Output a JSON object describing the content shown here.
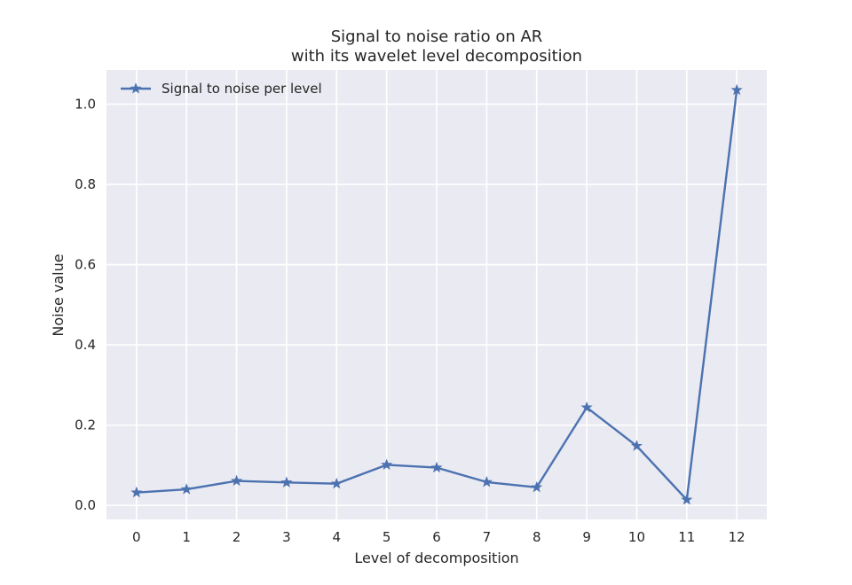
{
  "chart_data": {
    "type": "line",
    "title": [
      "Signal to noise ratio on AR",
      "with its wavelet level decomposition"
    ],
    "xlabel": "Level of decomposition",
    "ylabel": "Noise value",
    "x": [
      0,
      1,
      2,
      3,
      4,
      5,
      6,
      7,
      8,
      9,
      10,
      11,
      12
    ],
    "xlim": [
      -0.6,
      12.6
    ],
    "ylim": [
      -0.035,
      1.085
    ],
    "xticks": [
      "0",
      "1",
      "2",
      "3",
      "4",
      "5",
      "6",
      "7",
      "8",
      "9",
      "10",
      "11",
      "12"
    ],
    "yticks": [
      0.0,
      0.2,
      0.4,
      0.6,
      0.8,
      1.0
    ],
    "ytick_labels": [
      "0.0",
      "0.2",
      "0.4",
      "0.6",
      "0.8",
      "1.0"
    ],
    "grid": true,
    "legend_position": "top-left",
    "series": [
      {
        "name": "Signal to noise per level",
        "marker": "star",
        "color": "#4c72b0",
        "values": [
          0.032,
          0.04,
          0.061,
          0.057,
          0.054,
          0.101,
          0.094,
          0.058,
          0.045,
          0.244,
          0.148,
          0.014,
          1.035
        ]
      }
    ]
  },
  "colors": {
    "plot_background": "#eaeaf2",
    "grid": "#ffffff",
    "line": "#4c72b0"
  }
}
